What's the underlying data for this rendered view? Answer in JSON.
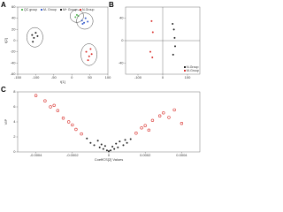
{
  "chart_data": [
    {
      "type": "scatter",
      "panel": "A",
      "x_label": "t[1]",
      "y_label": "t[2]",
      "xlim": [
        -150,
        100
      ],
      "xticks": [
        -150,
        -100,
        -50,
        0,
        50,
        100
      ],
      "ylim": [
        -60,
        60
      ],
      "yticks": [
        -60,
        -40,
        -20,
        0,
        20,
        40,
        60
      ],
      "ellipses": true,
      "legend": "top",
      "series": [
        {
          "name": "QC group",
          "color": "#5cb85c",
          "x": [
            10,
            14,
            18
          ],
          "values": [
            42,
            46,
            44
          ]
        },
        {
          "name": "M- Group",
          "color": "#3a5fcd",
          "x": [
            28,
            34,
            38,
            44,
            30
          ],
          "values": [
            36,
            32,
            40,
            34,
            30
          ]
        },
        {
          "name": "M+ Group",
          "color": "#222222",
          "x": [
            -110,
            -105,
            -100,
            -95,
            -108
          ],
          "values": [
            10,
            5,
            14,
            8,
            -2
          ]
        },
        {
          "name": "N-Group",
          "color": "#d9302c",
          "x": [
            40,
            48,
            55,
            45,
            52
          ],
          "values": [
            -20,
            -28,
            -24,
            -35,
            -15
          ]
        }
      ]
    },
    {
      "type": "scatter",
      "panel": "B",
      "xlim": [
        -150,
        150
      ],
      "xticks": [
        -100,
        0,
        100
      ],
      "ylim": [
        -60,
        60
      ],
      "yticks": [
        -40,
        0,
        40
      ],
      "axes_at_zero": true,
      "legend": "bottom-right",
      "series": [
        {
          "name": "N-Group",
          "color": "#222222",
          "x": [
            40,
            45,
            50,
            42,
            48
          ],
          "values": [
            30,
            20,
            -10,
            -25,
            5
          ]
        },
        {
          "name": "M-Group",
          "color": "#d9302c",
          "x": [
            -45,
            -40,
            -50,
            -42
          ],
          "values": [
            35,
            15,
            -20,
            -30
          ]
        }
      ]
    },
    {
      "type": "volcano",
      "panel": "C",
      "x_label": "CoeffCS[2] Values",
      "y_label": "VIP",
      "xlim": [
        -0.0005,
        0.0005
      ],
      "xticks": [
        -0.0004,
        -0.0002,
        0,
        0.0002,
        0.0004
      ],
      "ylim": [
        0,
        8
      ],
      "yticks": [
        0,
        2,
        4,
        6,
        8
      ],
      "series": [
        {
          "color": "#222222",
          "x": [
            -0.0001,
            -8e-05,
            -5e-05,
            -3e-05,
            -1e-05,
            0,
            1e-05,
            3e-05,
            5e-05,
            8e-05,
            0.0001,
            -6e-05,
            6e-05,
            -0.00012,
            0.00012,
            -2e-05,
            2e-05,
            4e-05,
            -4e-05,
            9e-05
          ],
          "values": [
            1.2,
            0.9,
            0.6,
            0.4,
            0.2,
            0.1,
            0.2,
            0.4,
            0.6,
            0.9,
            1.2,
            1.5,
            1.4,
            1.8,
            1.7,
            0.8,
            0.7,
            1.1,
            1.0,
            1.6
          ]
        },
        {
          "color": "#d9302c",
          "x": [
            -0.0004,
            -0.00035,
            -0.0003,
            -0.00028,
            -0.00025,
            -0.0002,
            -0.00018,
            -0.00015,
            -0.00022,
            -0.00032,
            0.00015,
            0.00018,
            0.0002,
            0.00024,
            0.00028,
            0.0003,
            0.00033,
            0.00036,
            0.0004,
            0.00022
          ],
          "values": [
            7.5,
            6.8,
            6.2,
            5.5,
            4.5,
            3.6,
            3.0,
            2.4,
            4.0,
            6.0,
            2.5,
            3.2,
            3.5,
            4.2,
            4.8,
            5.2,
            4.6,
            5.6,
            3.8,
            2.9
          ]
        }
      ]
    }
  ]
}
